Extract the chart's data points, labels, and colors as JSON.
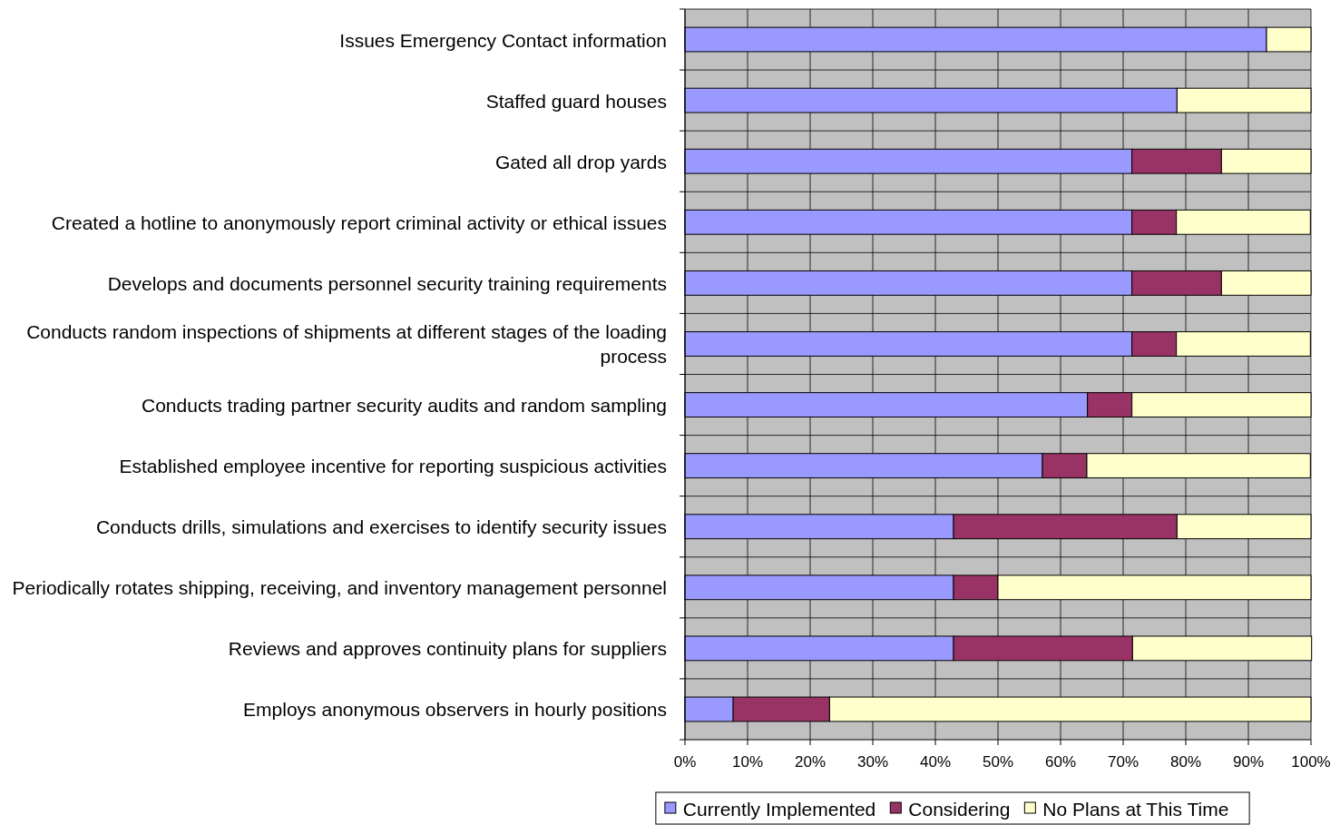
{
  "chart_data": {
    "type": "bar",
    "orientation": "horizontal",
    "stacked": true,
    "grid": true,
    "legend": "bottom",
    "categories": [
      "Issues Emergency Contact information",
      "Staffed guard houses",
      "Gated all drop yards",
      "Created a hotline to anonymously report criminal activity or ethical issues",
      "Develops and documents personnel security training requirements",
      "Conducts random inspections of shipments at different stages of the loading process",
      "Conducts trading partner security audits and random sampling",
      "Established employee incentive for reporting suspicious activities",
      "Conducts drills, simulations and exercises to identify security issues",
      "Periodically rotates shipping, receiving, and inventory management personnel",
      "Reviews and approves continuity plans for suppliers",
      "Employs anonymous observers in hourly positions"
    ],
    "series": [
      {
        "name": "Currently Implemented",
        "color": "#9999ff",
        "values": [
          92.9,
          78.6,
          71.4,
          71.4,
          71.4,
          71.4,
          64.3,
          57.1,
          42.9,
          42.9,
          42.9,
          7.7
        ]
      },
      {
        "name": "Considering",
        "color": "#993366",
        "values": [
          0,
          0,
          14.3,
          7.1,
          14.3,
          7.1,
          7.1,
          7.1,
          35.7,
          7.1,
          28.6,
          15.4
        ]
      },
      {
        "name": "No Plans at This Time",
        "color": "#ffffcc",
        "values": [
          7.1,
          21.4,
          14.3,
          21.4,
          14.3,
          21.4,
          28.6,
          35.7,
          21.4,
          50,
          28.6,
          76.9
        ]
      }
    ],
    "xlim": [
      0,
      100
    ],
    "xticks": [
      {
        "value": 0,
        "label": "0%"
      },
      {
        "value": 10,
        "label": "10%"
      },
      {
        "value": 20,
        "label": "20%"
      },
      {
        "value": 30,
        "label": "30%"
      },
      {
        "value": 40,
        "label": "40%"
      },
      {
        "value": 50,
        "label": "50%"
      },
      {
        "value": 60,
        "label": "60%"
      },
      {
        "value": 70,
        "label": "70%"
      },
      {
        "value": 80,
        "label": "80%"
      },
      {
        "value": 90,
        "label": "90%"
      },
      {
        "value": 100,
        "label": "100%"
      }
    ]
  }
}
